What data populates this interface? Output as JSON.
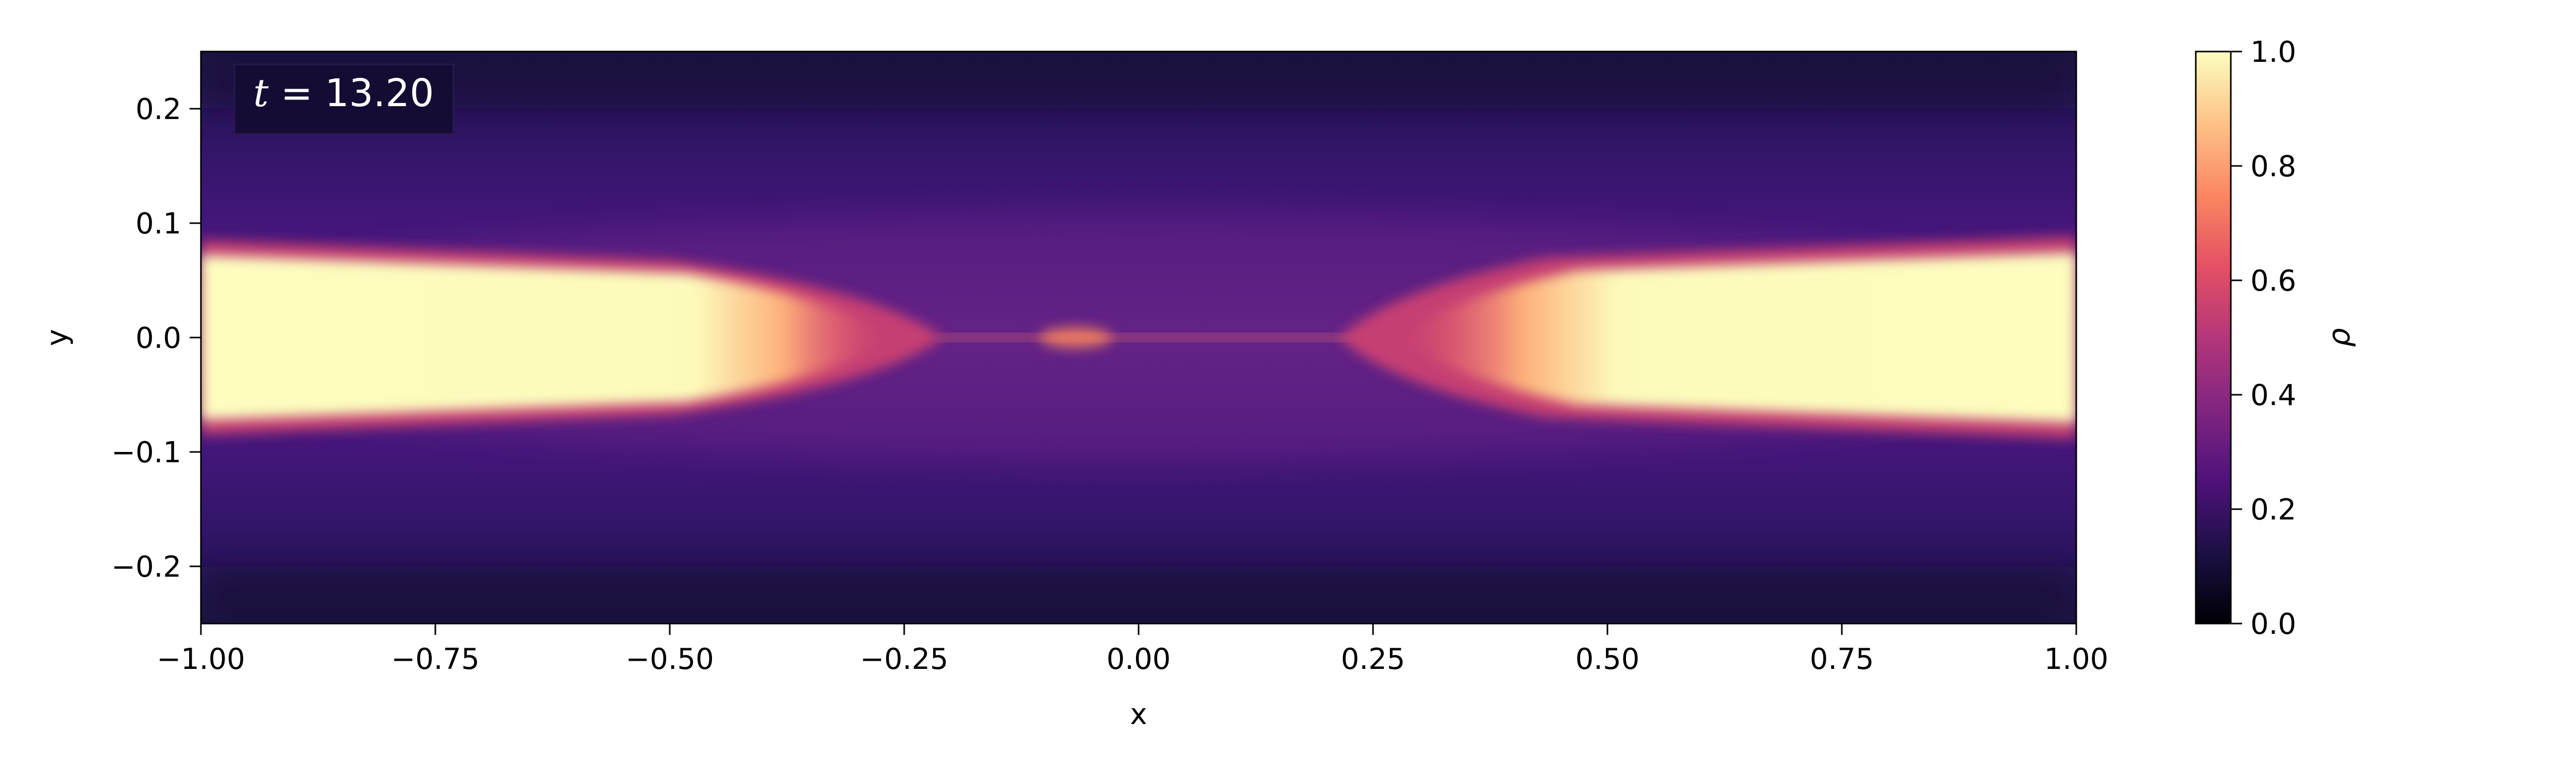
{
  "chart_data": {
    "type": "heatmap",
    "title": "",
    "xlabel": "x",
    "ylabel": "y",
    "xlim": [
      -1.0,
      1.0
    ],
    "ylim": [
      -0.25,
      0.25
    ],
    "x_ticks": [
      -1.0,
      -0.75,
      -0.5,
      -0.25,
      0.0,
      0.25,
      0.5,
      0.75,
      1.0
    ],
    "x_tick_labels": [
      "−1.00",
      "−0.75",
      "−0.50",
      "−0.25",
      "0.00",
      "0.25",
      "0.50",
      "0.75",
      "1.00"
    ],
    "y_ticks": [
      -0.2,
      -0.1,
      0.0,
      0.1,
      0.2
    ],
    "y_tick_labels": [
      "−0.2",
      "−0.1",
      "0.0",
      "0.1",
      "0.2"
    ],
    "grid": false,
    "colormap": "magma",
    "annotation": {
      "label": "t = 13.20",
      "math_symbol": "t",
      "equals": " = ",
      "value": "13.20",
      "placement": "top-left"
    },
    "colorbar": {
      "label": "ρ",
      "range": [
        0.0,
        1.0
      ],
      "ticks": [
        0.0,
        0.2,
        0.4,
        0.6,
        0.8,
        1.0
      ],
      "tick_labels": [
        "0.0",
        "0.2",
        "0.4",
        "0.6",
        "0.8",
        "1.0"
      ],
      "placement": "right"
    },
    "colormap_stops": [
      "#000004",
      "#1c1044",
      "#4f127b",
      "#812581",
      "#b5367a",
      "#e55064",
      "#fb8761",
      "#fec287",
      "#fcfdbf"
    ]
  }
}
